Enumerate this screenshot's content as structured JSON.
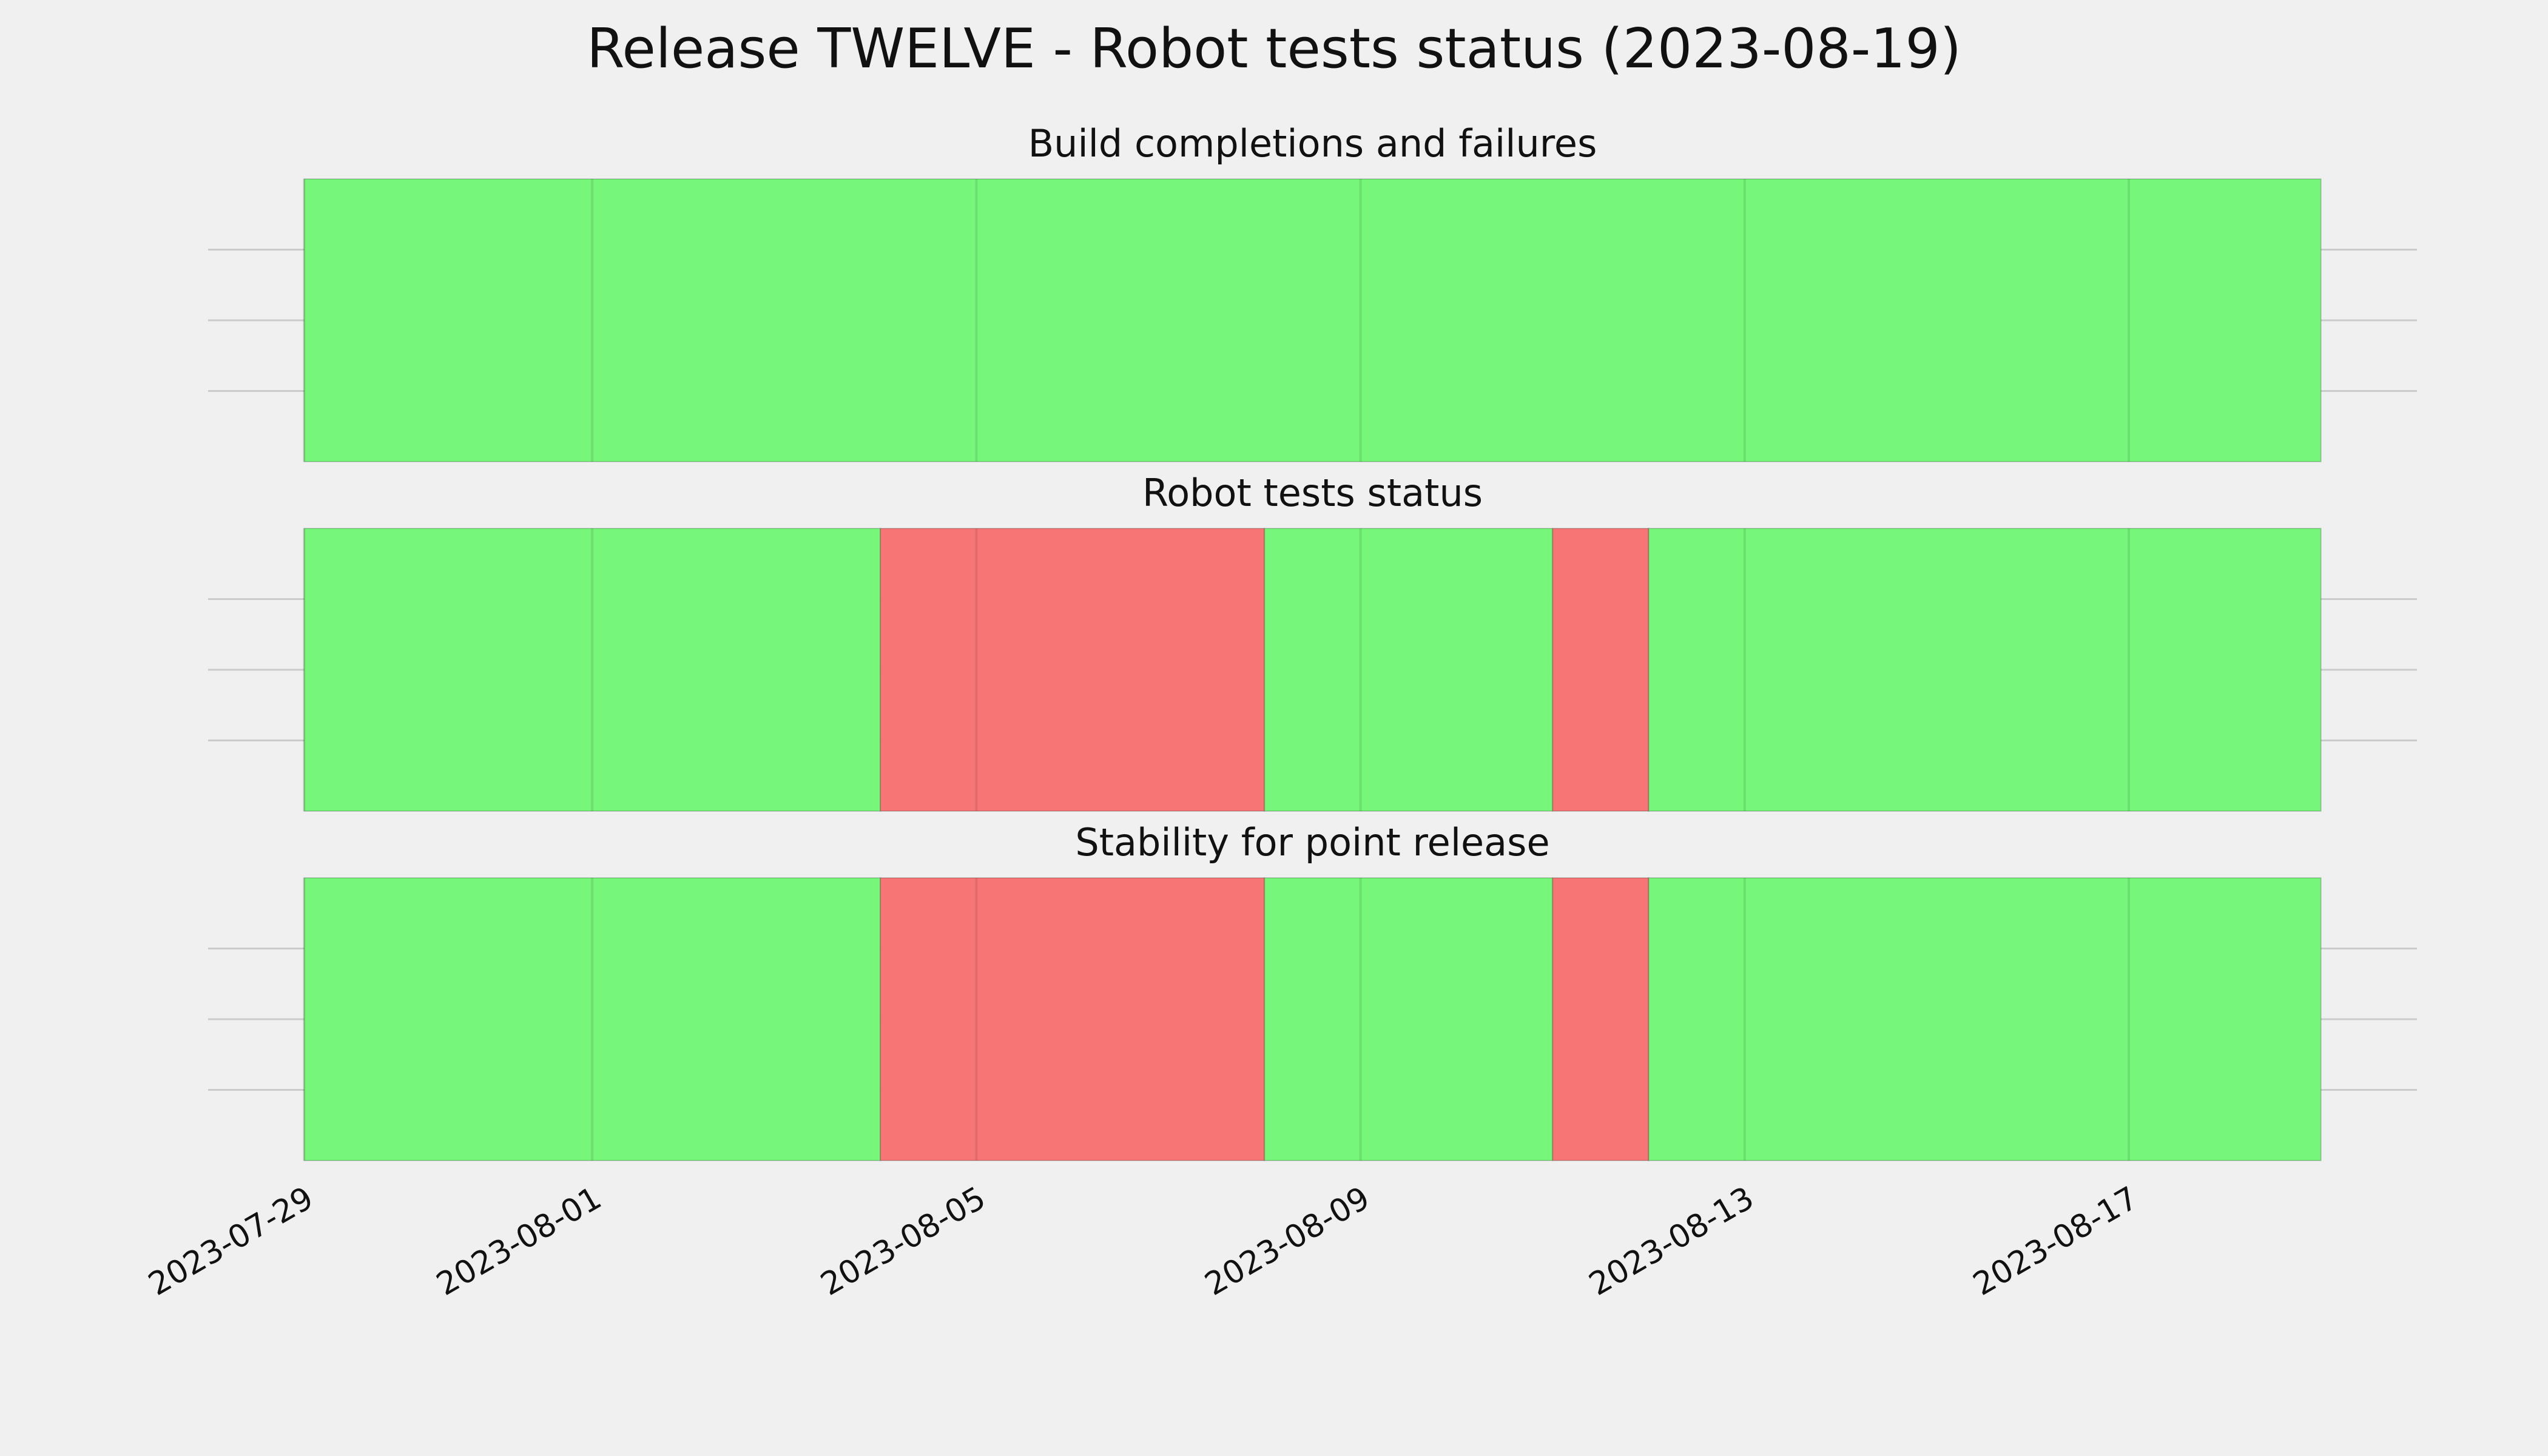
{
  "title": "Release TWELVE - Robot tests status (2023-08-19)",
  "x_axis": {
    "xlim": [
      "2023-07-28",
      "2023-08-20"
    ],
    "xticks": [
      "2023-07-29",
      "2023-08-01",
      "2023-08-05",
      "2023-08-09",
      "2023-08-13",
      "2023-08-17"
    ]
  },
  "chart_data": [
    {
      "type": "span",
      "title": "Build completions and failures",
      "starts": [
        "2023-07-29"
      ],
      "ends": [
        "2023-08-19"
      ],
      "colors": [
        "#76f77a"
      ],
      "ylim": [
        0,
        1
      ],
      "ygrid": [
        0.25,
        0.5,
        0.75
      ],
      "grid": true
    },
    {
      "type": "span",
      "title": "Robot tests status",
      "starts": [
        "2023-07-29",
        "2023-08-04",
        "2023-08-08",
        "2023-08-11",
        "2023-08-12"
      ],
      "ends": [
        "2023-08-04",
        "2023-08-08",
        "2023-08-11",
        "2023-08-12",
        "2023-08-19"
      ],
      "colors": [
        "#76f77a",
        "#f77675",
        "#76f77a",
        "#f77675",
        "#76f77a"
      ],
      "ylim": [
        0,
        1
      ],
      "ygrid": [
        0.25,
        0.5,
        0.75
      ],
      "grid": true
    },
    {
      "type": "span",
      "title": "Stability for point release",
      "starts": [
        "2023-07-29",
        "2023-08-04",
        "2023-08-08",
        "2023-08-11",
        "2023-08-12"
      ],
      "ends": [
        "2023-08-04",
        "2023-08-08",
        "2023-08-11",
        "2023-08-12",
        "2023-08-19"
      ],
      "colors": [
        "#76f77a",
        "#f77675",
        "#76f77a",
        "#f77675",
        "#76f77a"
      ],
      "ylim": [
        0,
        1
      ],
      "ygrid": [
        0.25,
        0.5,
        0.75
      ],
      "grid": true
    }
  ]
}
